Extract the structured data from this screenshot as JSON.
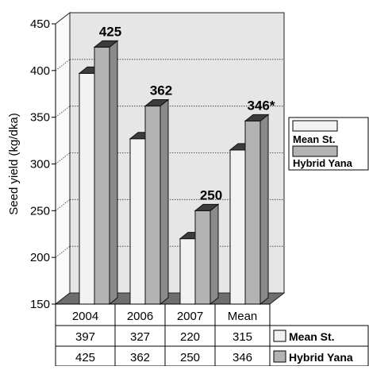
{
  "chart_data": {
    "type": "bar",
    "title": "",
    "ylabel": "Seed yield (kg/dka)",
    "xlabel": "",
    "ylim": [
      150,
      450
    ],
    "yticks": [
      150,
      200,
      250,
      300,
      350,
      400,
      450
    ],
    "categories": [
      "2004",
      "2006",
      "2007",
      "Mean"
    ],
    "series": [
      {
        "name": "Mean St.",
        "values": [
          397,
          327,
          220,
          315
        ],
        "color": "#f2f2f2"
      },
      {
        "name": "Hybrid Yana",
        "values": [
          425,
          362,
          250,
          346
        ],
        "color": "#b3b3b3"
      }
    ],
    "data_labels": [
      "425",
      "362",
      "250",
      "346*"
    ],
    "legend": {
      "placement": "right"
    },
    "grid": "dotted horizontal lines",
    "table": {
      "rows": [
        {
          "series": "Mean St.",
          "values": [
            "397",
            "327",
            "220",
            "315"
          ]
        },
        {
          "series": "Hybrid Yana",
          "values": [
            "425",
            "362",
            "250",
            "346"
          ]
        }
      ]
    },
    "colors": {
      "back_wall": "#e6e6e6",
      "floor": "#6e6e6e",
      "bar_side": "#8a8a8a",
      "bar_top": "#3c3c3c"
    }
  }
}
